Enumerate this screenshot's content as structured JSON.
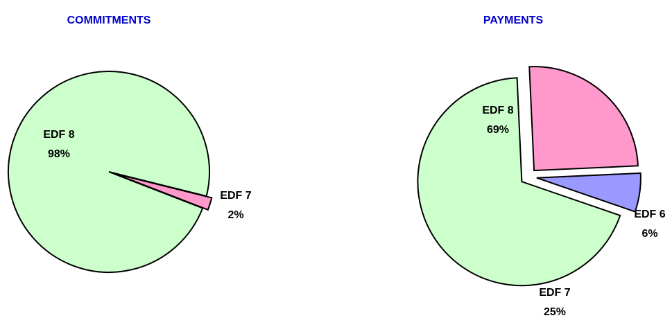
{
  "chart_data": [
    {
      "type": "pie",
      "title": "COMMITMENTS",
      "categories": [
        "EDF 8",
        "EDF 7"
      ],
      "values": [
        98,
        2
      ],
      "value_labels": [
        "98%",
        "2%"
      ],
      "colors": [
        "#ccffcc",
        "#ff99cc"
      ]
    },
    {
      "type": "pie",
      "title": "PAYMENTS",
      "categories": [
        "EDF 8",
        "EDF 7",
        "EDF 6"
      ],
      "values": [
        69,
        25,
        6
      ],
      "value_labels": [
        "69%",
        "25%",
        "6%"
      ],
      "colors": [
        "#ccffcc",
        "#ff99cc",
        "#9999ff"
      ]
    }
  ]
}
